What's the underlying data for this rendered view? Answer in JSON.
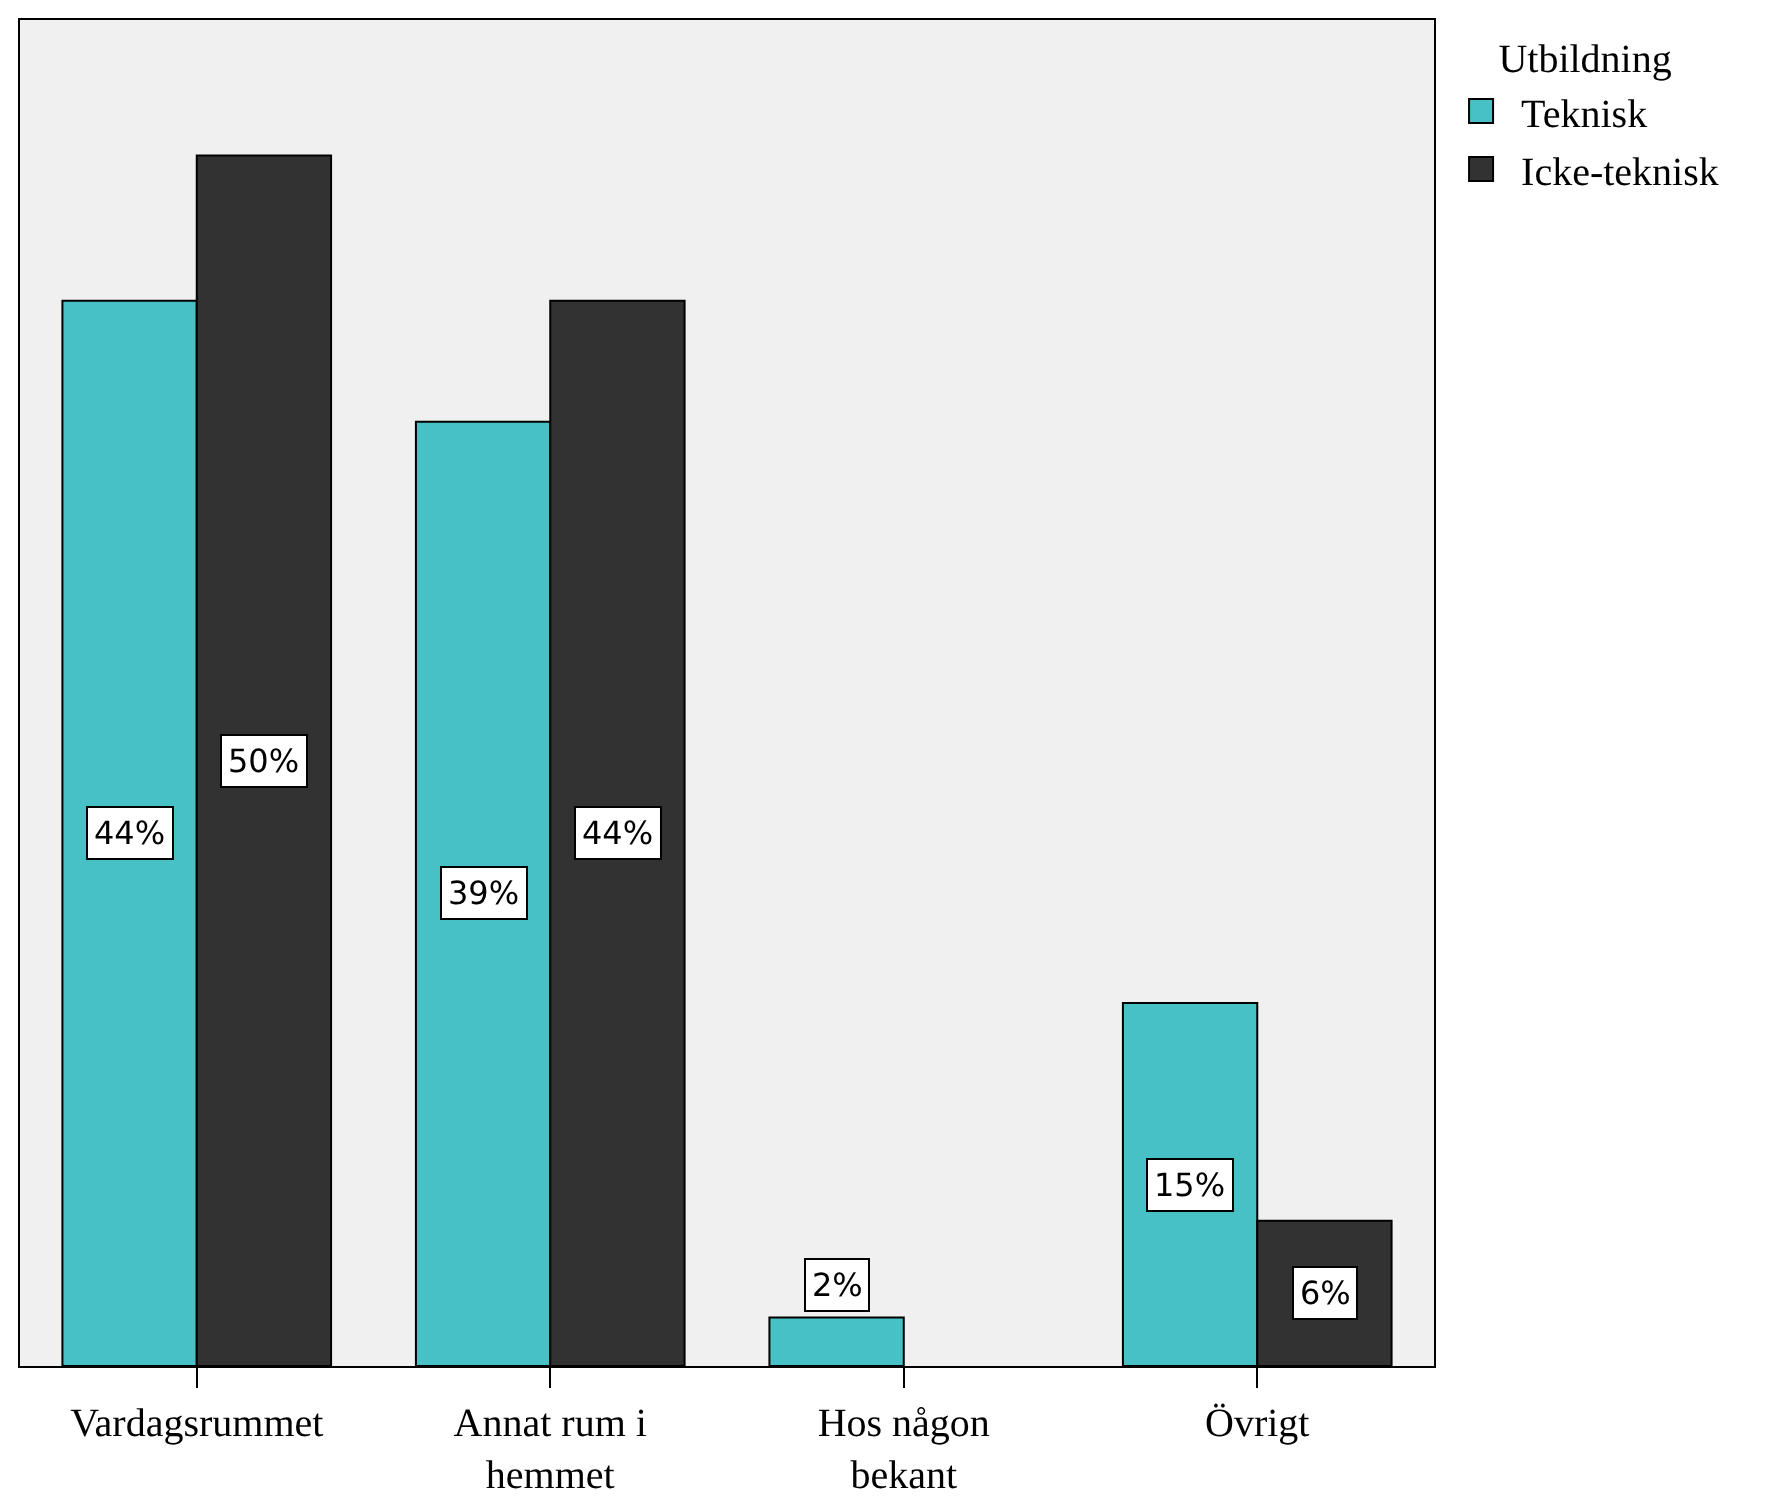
{
  "chart_data": {
    "type": "bar",
    "categories": [
      "Vardagsrummet",
      "Annat rum i hemmet",
      "Hos någon bekant",
      "Övrigt"
    ],
    "series": [
      {
        "name": "Teknisk",
        "color": "#47c1c5",
        "values": [
          44,
          39,
          2,
          15
        ],
        "value_labels": [
          "44%",
          "39%",
          "2%",
          "15%"
        ]
      },
      {
        "name": "Icke-teknisk",
        "color": "#323232",
        "values": [
          50,
          44,
          null,
          6
        ],
        "value_labels": [
          "50%",
          "44%",
          null,
          "6%"
        ]
      }
    ],
    "legend_title": "Utbildning",
    "legend": "top right",
    "ylim": [
      0,
      55.6
    ],
    "tick_labels": "x"
  }
}
